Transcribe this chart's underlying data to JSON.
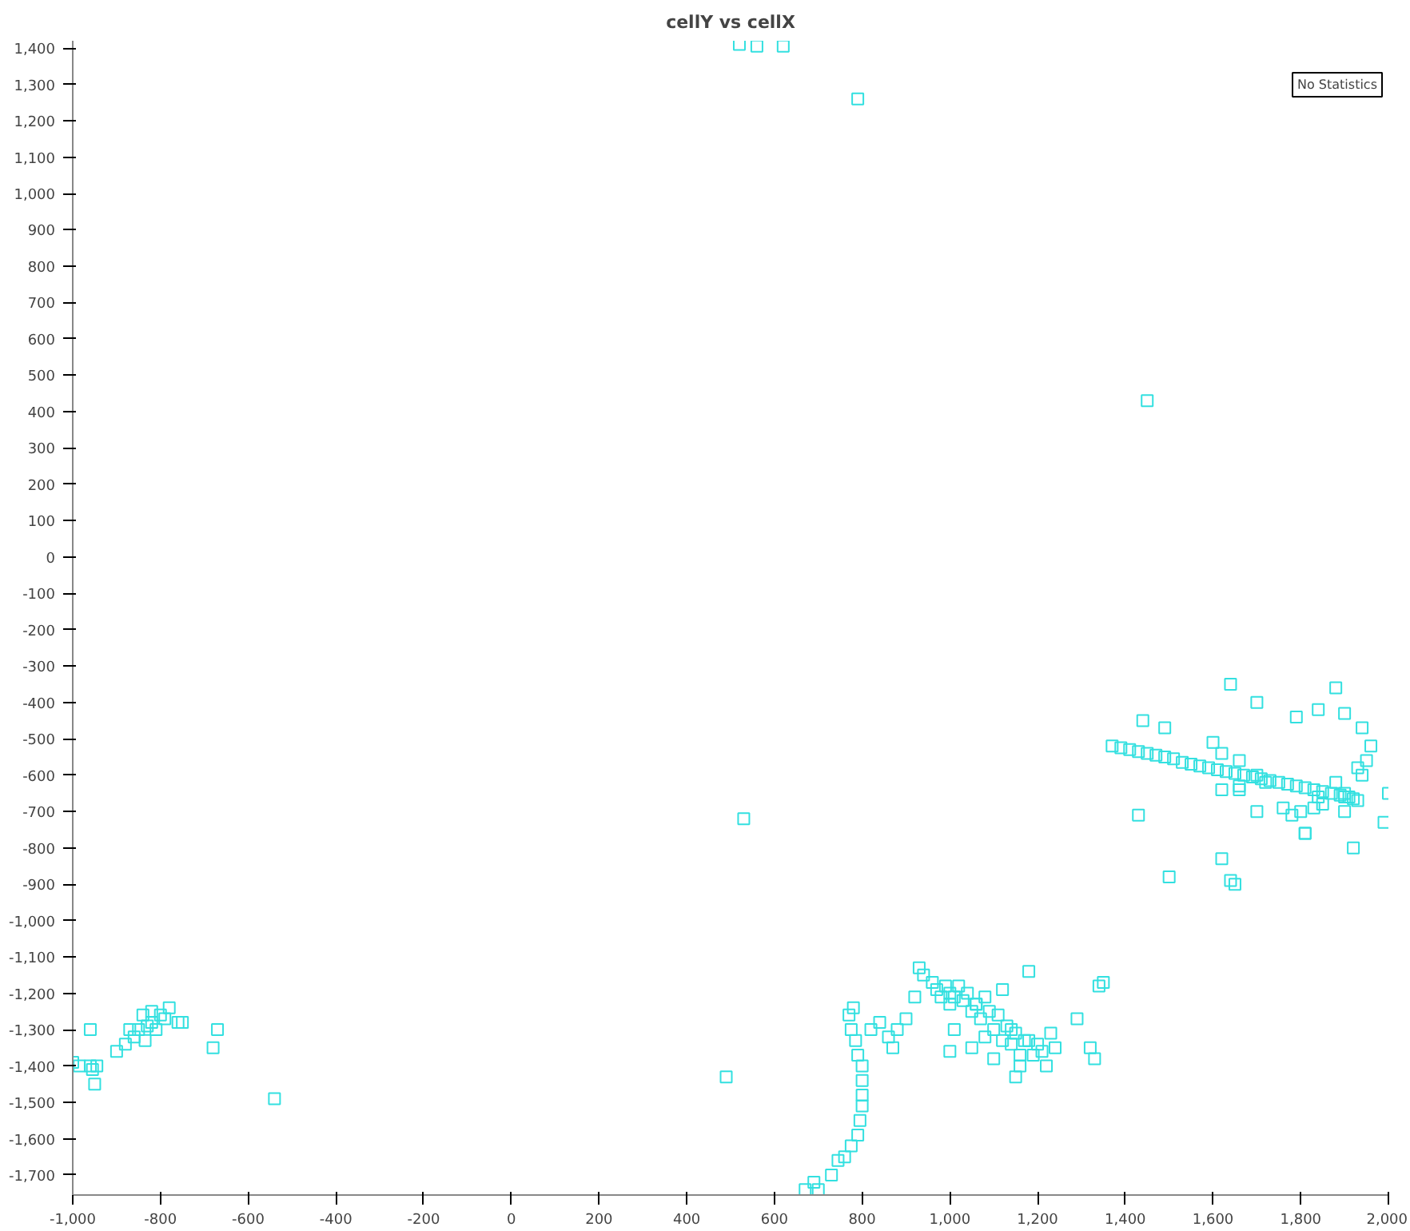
{
  "chart_data": {
    "type": "scatter",
    "title": "cellY vs cellX",
    "marker": "square",
    "grid": false,
    "annotations": [
      "No Statistics"
    ],
    "xlim": [
      -1000,
      2000
    ],
    "ylim": [
      -1755,
      1420
    ],
    "xticks": [
      {
        "value": -1000,
        "label": "-1,000"
      },
      -800,
      -600,
      -400,
      -200,
      0,
      200,
      400,
      600,
      800,
      {
        "value": 1000,
        "label": "1,000"
      },
      {
        "value": 1200,
        "label": "1,200"
      },
      {
        "value": 1400,
        "label": "1,400"
      },
      {
        "value": 1600,
        "label": "1,600"
      },
      {
        "value": 1800,
        "label": "1,800"
      },
      {
        "value": 2000,
        "label": "2,000"
      }
    ],
    "yticks": [
      {
        "value": -1700,
        "label": "-1,700"
      },
      {
        "value": -1600,
        "label": "-1,600"
      },
      {
        "value": -1500,
        "label": "-1,500"
      },
      {
        "value": -1400,
        "label": "-1,400"
      },
      {
        "value": -1300,
        "label": "-1,300"
      },
      {
        "value": -1200,
        "label": "-1,200"
      },
      {
        "value": -1100,
        "label": "-1,100"
      },
      {
        "value": -1000,
        "label": "-1,000"
      },
      -900,
      -800,
      -700,
      -600,
      -500,
      -400,
      -300,
      -200,
      -100,
      0,
      100,
      200,
      300,
      400,
      500,
      600,
      700,
      800,
      900,
      {
        "value": 1000,
        "label": "1,000"
      },
      {
        "value": 1100,
        "label": "1,100"
      },
      {
        "value": 1200,
        "label": "1,200"
      },
      {
        "value": 1300,
        "label": "1,300"
      },
      {
        "value": 1400,
        "label": "1,400"
      }
    ],
    "series": [
      {
        "color": "#33e0e0",
        "x": [
          -1000,
          -985,
          -960,
          -955,
          -950,
          -960,
          -945,
          -900,
          -880,
          -870,
          -860,
          -850,
          -840,
          -835,
          -830,
          -820,
          -820,
          -810,
          -800,
          -790,
          -780,
          -760,
          -750,
          -680,
          -670,
          -540,
          490,
          530,
          520,
          560,
          620,
          790,
          1450,
          780,
          770,
          775,
          785,
          790,
          800,
          800,
          800,
          800,
          795,
          790,
          775,
          760,
          745,
          730,
          690,
          700,
          670,
          820,
          840,
          860,
          870,
          880,
          900,
          920,
          930,
          940,
          960,
          970,
          980,
          990,
          1000,
          1000,
          1010,
          1020,
          1030,
          1040,
          1050,
          1060,
          1070,
          1080,
          1090,
          1100,
          1000,
          1010,
          1050,
          1080,
          1110,
          1120,
          1130,
          1140,
          1150,
          1160,
          1170,
          1180,
          1190,
          1200,
          1220,
          1230,
          1240,
          1290,
          1320,
          1330,
          1340,
          1350,
          1100,
          1150,
          1160,
          1060,
          1120,
          1140,
          1180,
          1210,
          1370,
          1390,
          1410,
          1430,
          1450,
          1470,
          1490,
          1510,
          1530,
          1550,
          1570,
          1590,
          1610,
          1630,
          1650,
          1670,
          1690,
          1710,
          1730,
          1750,
          1770,
          1790,
          1810,
          1830,
          1850,
          1870,
          1890,
          1900,
          1910,
          1920,
          1930,
          1940,
          1950,
          1960,
          1940,
          1900,
          1700,
          1640,
          1840,
          1490,
          1620,
          1650,
          1600,
          1620,
          1660,
          1700,
          1720,
          1800,
          1810,
          1830,
          1850,
          1880,
          1900,
          1930,
          1990,
          2000,
          1430,
          1440,
          1500,
          1640,
          1660,
          1700,
          1780,
          1790,
          1900,
          1920,
          1880,
          1840,
          1760,
          1810,
          1620,
          1660
        ],
        "values": [
          -1390,
          -1400,
          -1300,
          -1410,
          -1450,
          -1400,
          -1400,
          -1360,
          -1340,
          -1300,
          -1320,
          -1300,
          -1260,
          -1330,
          -1290,
          -1280,
          -1250,
          -1300,
          -1260,
          -1270,
          -1240,
          -1280,
          -1280,
          -1350,
          -1300,
          -1490,
          -1430,
          -720,
          1410,
          1405,
          1405,
          1260,
          430,
          -1240,
          -1260,
          -1300,
          -1330,
          -1370,
          -1400,
          -1440,
          -1480,
          -1510,
          -1550,
          -1590,
          -1620,
          -1650,
          -1660,
          -1700,
          -1720,
          -1740,
          -1740,
          -1300,
          -1280,
          -1320,
          -1350,
          -1300,
          -1270,
          -1210,
          -1130,
          -1150,
          -1170,
          -1190,
          -1210,
          -1180,
          -1200,
          -1230,
          -1210,
          -1180,
          -1220,
          -1200,
          -1250,
          -1230,
          -1270,
          -1210,
          -1250,
          -1300,
          -1360,
          -1300,
          -1350,
          -1320,
          -1260,
          -1330,
          -1290,
          -1340,
          -1310,
          -1370,
          -1330,
          -1140,
          -1370,
          -1340,
          -1400,
          -1310,
          -1350,
          -1270,
          -1350,
          -1380,
          -1180,
          -1170,
          -1380,
          -1430,
          -1400,
          -1230,
          -1190,
          -1300,
          -1330,
          -1360,
          -520,
          -525,
          -530,
          -535,
          -540,
          -545,
          -550,
          -555,
          -565,
          -570,
          -575,
          -580,
          -585,
          -590,
          -595,
          -600,
          -605,
          -610,
          -615,
          -620,
          -625,
          -630,
          -635,
          -640,
          -645,
          -650,
          -655,
          -650,
          -660,
          -665,
          -670,
          -600,
          -560,
          -520,
          -470,
          -430,
          -400,
          -350,
          -420,
          -470,
          -830,
          -900,
          -510,
          -540,
          -560,
          -600,
          -620,
          -700,
          -760,
          -690,
          -680,
          -620,
          -660,
          -580,
          -730,
          -650,
          -710,
          -450,
          -880,
          -890,
          -630,
          -700,
          -710,
          -440,
          -700,
          -800,
          -360,
          -660,
          -690,
          -760,
          -640,
          -640
        ]
      }
    ]
  }
}
